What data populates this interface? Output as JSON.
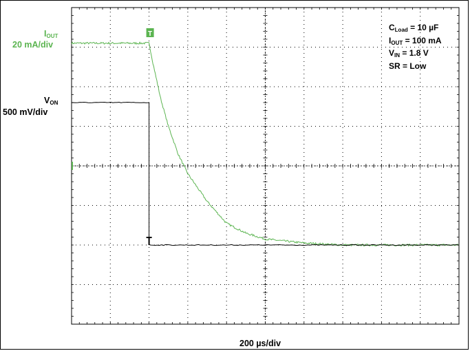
{
  "chart_data": {
    "type": "line",
    "title": "",
    "xlabel": "200 µs/div",
    "x_divisions": 10,
    "y_divisions": 8,
    "grid": true,
    "series": [
      {
        "name": "IOUT",
        "scale": "20 mA/div",
        "color": "#5bb450",
        "note": "steady ~100 mA, then exponential decay to ~0 after VON falls",
        "x_div": [
          0,
          1,
          2,
          2.1,
          2.3,
          2.5,
          2.75,
          3,
          3.5,
          4,
          4.5,
          5,
          6,
          7,
          8,
          9,
          10
        ],
        "y_div": [
          7.1,
          7.1,
          7.1,
          6.6,
          5.7,
          5.0,
          4.3,
          3.8,
          3.1,
          2.55,
          2.3,
          2.15,
          2.05,
          2.0,
          2.0,
          2.0,
          2.0
        ]
      },
      {
        "name": "VON",
        "scale": "500 mV/div",
        "color": "#000000",
        "note": "high (~1.8 V) until t≈400 µs, then drops to 0",
        "x_div": [
          0,
          2.0,
          2.0,
          10
        ],
        "y_div": [
          5.6,
          5.6,
          2.0,
          2.0
        ]
      }
    ]
  },
  "labels": {
    "iout_name": "I",
    "iout_sub": "OUT",
    "iout_scale": "20 mA/div",
    "von_name": "V",
    "von_sub": "ON",
    "von_scale": "500 mV/div",
    "xscale": "200 µs/div",
    "trigger_marker": "T"
  },
  "conditions": [
    {
      "base": "C",
      "sub": "Load",
      "rest": " = 10 µF"
    },
    {
      "base": "I",
      "sub": "OUT",
      "rest": " = 100 mA"
    },
    {
      "base": "V",
      "sub": "IN",
      "rest": " = 1.8 V"
    },
    {
      "base": "SR = Low",
      "sub": "",
      "rest": ""
    }
  ]
}
